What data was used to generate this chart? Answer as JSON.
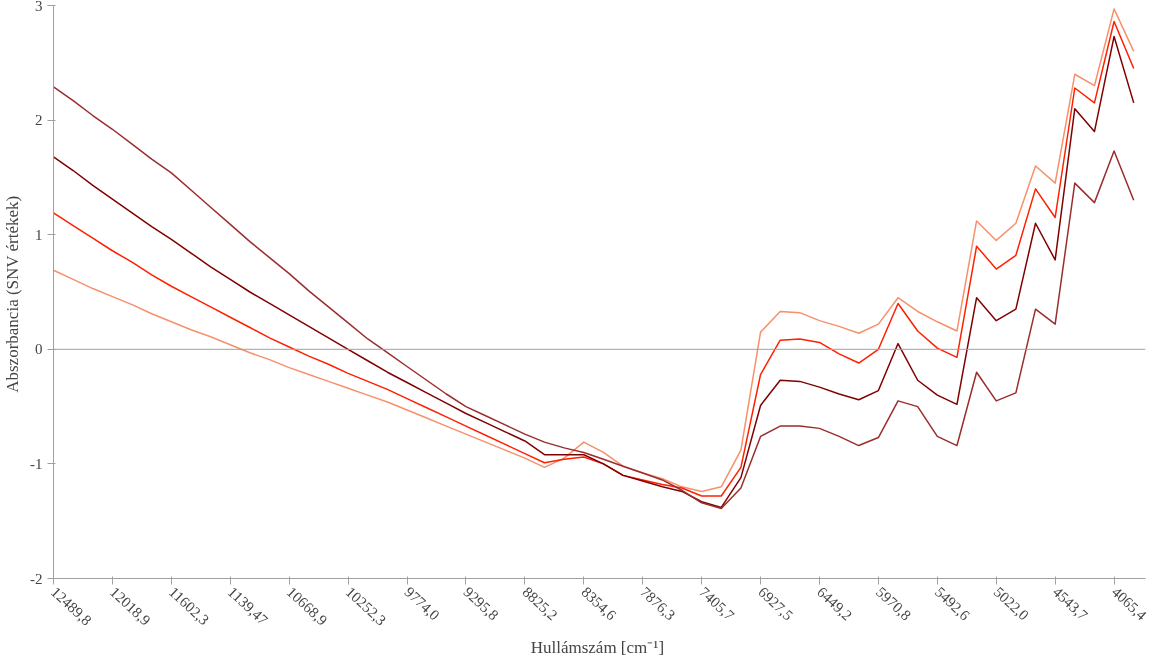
{
  "chart_data": {
    "type": "line",
    "xlabel": "Hullámszám  [cm⁻¹]",
    "ylabel": "Abszorbancia  (SNV értékek)",
    "categories": [
      "12489,8",
      null,
      null,
      "12018,9",
      null,
      null,
      "11602,3",
      null,
      null,
      "1139,47",
      null,
      null,
      "10668,9",
      null,
      null,
      "10252,3",
      null,
      null,
      "9774,0",
      null,
      null,
      "9295,8",
      null,
      null,
      "8825,2",
      null,
      null,
      "8354,6",
      null,
      null,
      "7876,3",
      null,
      null,
      "7405,7",
      null,
      null,
      "6927,5",
      null,
      null,
      "6449,2",
      null,
      null,
      "5970,8",
      null,
      null,
      "5492,6",
      null,
      null,
      "5022,0",
      null,
      null,
      "4543,7",
      null,
      null,
      "4065,4",
      null
    ],
    "series": [
      {
        "color": "#f7906c",
        "values": [
          0.69,
          0.61,
          0.53,
          0.46,
          0.39,
          0.31,
          0.24,
          0.17,
          0.11,
          0.04,
          -0.03,
          -0.09,
          -0.16,
          -0.22,
          -0.28,
          -0.34,
          -0.4,
          -0.46,
          -0.53,
          -0.6,
          -0.67,
          -0.74,
          -0.81,
          -0.88,
          -0.95,
          -1.03,
          -0.95,
          -0.81,
          -0.9,
          -1.02,
          -1.08,
          -1.13,
          -1.2,
          -1.24,
          -1.2,
          -0.88,
          0.15,
          0.33,
          0.32,
          0.25,
          0.2,
          0.14,
          0.22,
          0.45,
          0.33,
          0.24,
          0.16,
          1.12,
          0.95,
          1.1,
          1.6,
          1.45,
          2.4,
          2.3,
          2.97,
          2.6
        ]
      },
      {
        "color": "#ff2000",
        "values": [
          1.19,
          1.08,
          0.97,
          0.86,
          0.76,
          0.65,
          0.55,
          0.46,
          0.37,
          0.28,
          0.19,
          0.1,
          0.02,
          -0.06,
          -0.13,
          -0.21,
          -0.28,
          -0.35,
          -0.43,
          -0.51,
          -0.59,
          -0.67,
          -0.75,
          -0.83,
          -0.91,
          -0.99,
          -0.96,
          -0.94,
          -1.0,
          -1.1,
          -1.14,
          -1.18,
          -1.21,
          -1.28,
          -1.28,
          -1.03,
          -0.22,
          0.08,
          0.09,
          0.06,
          -0.04,
          -0.12,
          0.0,
          0.4,
          0.16,
          0.01,
          -0.07,
          0.9,
          0.7,
          0.82,
          1.4,
          1.15,
          2.28,
          2.15,
          2.86,
          2.45
        ]
      },
      {
        "color": "#800000",
        "values": [
          1.68,
          1.56,
          1.43,
          1.31,
          1.19,
          1.07,
          0.96,
          0.84,
          0.72,
          0.61,
          0.5,
          0.4,
          0.3,
          0.2,
          0.1,
          0.0,
          -0.1,
          -0.2,
          -0.29,
          -0.38,
          -0.47,
          -0.56,
          -0.64,
          -0.72,
          -0.8,
          -0.92,
          -0.92,
          -0.92,
          -1.0,
          -1.1,
          -1.15,
          -1.2,
          -1.24,
          -1.33,
          -1.38,
          -1.12,
          -0.49,
          -0.27,
          -0.28,
          -0.33,
          -0.39,
          -0.44,
          -0.36,
          0.05,
          -0.27,
          -0.4,
          -0.48,
          0.45,
          0.25,
          0.35,
          1.1,
          0.78,
          2.1,
          1.9,
          2.73,
          2.15
        ]
      },
      {
        "color": "#9b2d2d",
        "values": [
          2.29,
          2.17,
          2.04,
          1.92,
          1.79,
          1.66,
          1.54,
          1.39,
          1.24,
          1.09,
          0.94,
          0.8,
          0.66,
          0.51,
          0.37,
          0.23,
          0.09,
          -0.03,
          -0.15,
          -0.27,
          -0.39,
          -0.5,
          -0.58,
          -0.66,
          -0.74,
          -0.81,
          -0.86,
          -0.9,
          -0.96,
          -1.02,
          -1.08,
          -1.14,
          -1.23,
          -1.34,
          -1.39,
          -1.21,
          -0.76,
          -0.67,
          -0.67,
          -0.69,
          -0.76,
          -0.84,
          -0.77,
          -0.45,
          -0.5,
          -0.76,
          -0.84,
          -0.2,
          -0.45,
          -0.38,
          0.35,
          0.22,
          1.45,
          1.28,
          1.73,
          1.3
        ]
      }
    ],
    "ylim": [
      -2,
      3
    ],
    "yticks": [
      -2,
      -1,
      0,
      1,
      2,
      3
    ],
    "ref_lines": [
      {
        "axis": "y",
        "value": 0,
        "color": "#a0a0a0"
      }
    ],
    "grid": false,
    "marker": "none",
    "line_style": "solid"
  }
}
